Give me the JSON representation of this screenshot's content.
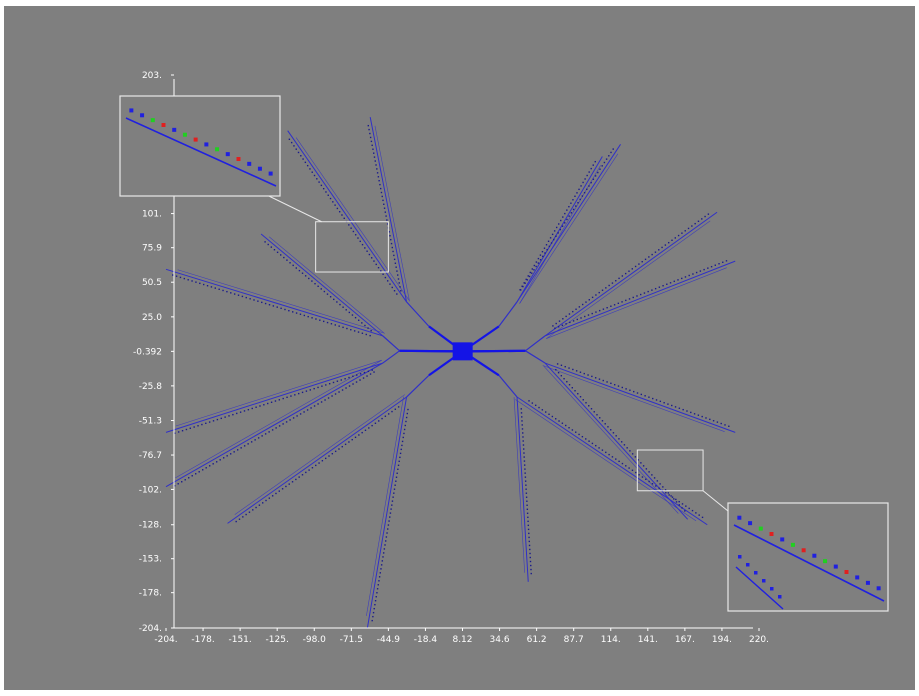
{
  "colors": {
    "background": "#7f7f7f",
    "axis": "#ffffff",
    "line": "#3030c8",
    "hub": "#1414e6",
    "dot_dark": "#1a1a8c",
    "dot_blue": "#2020e0",
    "dot_red": "#e02020",
    "dot_green": "#20d020",
    "inset_border": "#e8e8e8"
  },
  "chart_data": {
    "type": "scatter",
    "title": "",
    "xlabel": "",
    "ylabel": "",
    "xlim": [
      -204,
      220
    ],
    "ylim": [
      -204,
      203
    ],
    "grid": false,
    "legend": "none",
    "x_ticks": [
      "-204.",
      "-178.",
      "-151.",
      "-125.",
      "-98.0",
      "-71.5",
      "-44.9",
      "-18.4",
      "8.12",
      "34.6",
      "61.2",
      "87.7",
      "114.",
      "141.",
      "167.",
      "194.",
      "220."
    ],
    "y_ticks": [
      "203.",
      "178.",
      "152.",
      "127.",
      "101.",
      "75.9",
      "50.5",
      "25.0",
      "-0.392",
      "-25.8",
      "-51.3",
      "-76.7",
      "-102.",
      "-128.",
      "-153.",
      "-178.",
      "-204."
    ],
    "y_tick_values": [
      203,
      178,
      152,
      127,
      101,
      75.9,
      50.5,
      25.0,
      -0.392,
      -25.8,
      -51.3,
      -76.7,
      -102,
      -128,
      -153,
      -178,
      -204
    ],
    "hub": {
      "x": 8.12,
      "y": -0.392
    },
    "branches": [
      {
        "inner": [
          -37,
          0
        ],
        "fork": [
          -49,
          -9
        ],
        "ends": [
          [
            -204,
            -100
          ],
          [
            -204,
            -60
          ]
        ]
      },
      {
        "inner": [
          -37,
          0
        ],
        "fork": [
          -49,
          11
        ],
        "ends": [
          [
            -204,
            60
          ],
          [
            -136,
            86
          ]
        ]
      },
      {
        "inner": [
          -16,
          18
        ],
        "fork": [
          -32,
          36
        ],
        "ends": [
          [
            -117,
            162
          ],
          [
            -58,
            172
          ]
        ]
      },
      {
        "inner": [
          34,
          18
        ],
        "fork": [
          47,
          36
        ],
        "ends": [
          [
            121,
            152
          ],
          [
            108,
            143
          ]
        ]
      },
      {
        "inner": [
          53,
          0
        ],
        "fork": [
          67,
          11
        ],
        "ends": [
          [
            190,
            102
          ],
          [
            203,
            66
          ]
        ]
      },
      {
        "inner": [
          53,
          0
        ],
        "fork": [
          67,
          -9
        ],
        "ends": [
          [
            203,
            -60
          ],
          [
            169,
            -124
          ]
        ]
      },
      {
        "inner": [
          34,
          -18
        ],
        "fork": [
          47,
          -34
        ],
        "ends": [
          [
            183,
            -128
          ],
          [
            55,
            -170
          ]
        ]
      },
      {
        "inner": [
          -16,
          -18
        ],
        "fork": [
          -32,
          -34
        ],
        "ends": [
          [
            -160,
            -127
          ],
          [
            -60,
            -204
          ]
        ]
      }
    ],
    "insets": [
      {
        "region": {
          "x0": -97,
          "x1": -45,
          "y0": 58,
          "y1": 95
        }
      },
      {
        "region": {
          "x0": 133,
          "x1": 180,
          "y0": -103,
          "y1": -73
        }
      }
    ]
  }
}
